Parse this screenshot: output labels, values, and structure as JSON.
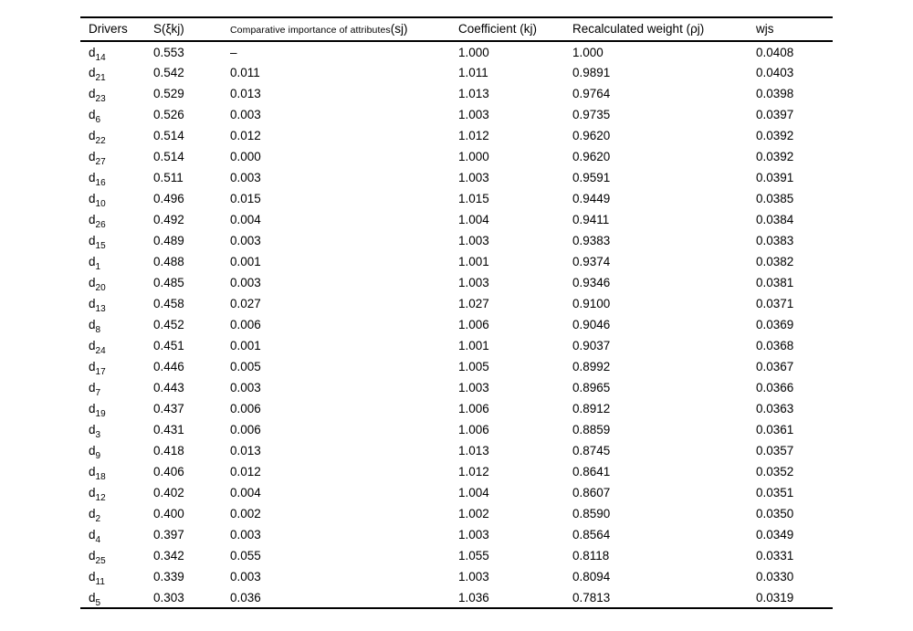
{
  "table": {
    "headers": {
      "drivers": "Drivers",
      "s": "S(ξkj)",
      "comparative_small": "Comparative importance of attributes",
      "comparative_suffix": "(sj)",
      "coefficient": "Coefficient (kj)",
      "recalculated": "Recalculated weight (ρj)",
      "wjs": "wjs"
    },
    "rows": [
      {
        "driver_base": "d",
        "driver_sub": "14",
        "s": "0.553",
        "sj": "–",
        "kj": "1.000",
        "rho": "1.000",
        "wjs": "0.0408"
      },
      {
        "driver_base": "d",
        "driver_sub": "21",
        "s": "0.542",
        "sj": "0.011",
        "kj": "1.011",
        "rho": "0.9891",
        "wjs": "0.0403"
      },
      {
        "driver_base": "d",
        "driver_sub": "23",
        "s": "0.529",
        "sj": "0.013",
        "kj": "1.013",
        "rho": "0.9764",
        "wjs": "0.0398"
      },
      {
        "driver_base": "d",
        "driver_sub": "6",
        "s": "0.526",
        "sj": "0.003",
        "kj": "1.003",
        "rho": "0.9735",
        "wjs": "0.0397"
      },
      {
        "driver_base": "d",
        "driver_sub": "22",
        "s": "0.514",
        "sj": "0.012",
        "kj": "1.012",
        "rho": "0.9620",
        "wjs": "0.0392"
      },
      {
        "driver_base": "d",
        "driver_sub": "27",
        "s": "0.514",
        "sj": "0.000",
        "kj": "1.000",
        "rho": "0.9620",
        "wjs": "0.0392"
      },
      {
        "driver_base": "d",
        "driver_sub": "16",
        "s": "0.511",
        "sj": "0.003",
        "kj": "1.003",
        "rho": "0.9591",
        "wjs": "0.0391"
      },
      {
        "driver_base": "d",
        "driver_sub": "10",
        "s": "0.496",
        "sj": "0.015",
        "kj": "1.015",
        "rho": "0.9449",
        "wjs": "0.0385"
      },
      {
        "driver_base": "d",
        "driver_sub": "26",
        "s": "0.492",
        "sj": "0.004",
        "kj": "1.004",
        "rho": "0.9411",
        "wjs": "0.0384"
      },
      {
        "driver_base": "d",
        "driver_sub": "15",
        "s": "0.489",
        "sj": "0.003",
        "kj": "1.003",
        "rho": "0.9383",
        "wjs": "0.0383"
      },
      {
        "driver_base": "d",
        "driver_sub": "1",
        "s": "0.488",
        "sj": "0.001",
        "kj": "1.001",
        "rho": "0.9374",
        "wjs": "0.0382"
      },
      {
        "driver_base": "d",
        "driver_sub": "20",
        "s": "0.485",
        "sj": "0.003",
        "kj": "1.003",
        "rho": "0.9346",
        "wjs": "0.0381"
      },
      {
        "driver_base": "d",
        "driver_sub": "13",
        "s": "0.458",
        "sj": "0.027",
        "kj": "1.027",
        "rho": "0.9100",
        "wjs": "0.0371"
      },
      {
        "driver_base": "d",
        "driver_sub": "8",
        "s": "0.452",
        "sj": "0.006",
        "kj": "1.006",
        "rho": "0.9046",
        "wjs": "0.0369"
      },
      {
        "driver_base": "d",
        "driver_sub": "24",
        "s": "0.451",
        "sj": "0.001",
        "kj": "1.001",
        "rho": "0.9037",
        "wjs": "0.0368"
      },
      {
        "driver_base": "d",
        "driver_sub": "17",
        "s": "0.446",
        "sj": "0.005",
        "kj": "1.005",
        "rho": "0.8992",
        "wjs": "0.0367"
      },
      {
        "driver_base": "d",
        "driver_sub": "7",
        "s": "0.443",
        "sj": "0.003",
        "kj": "1.003",
        "rho": "0.8965",
        "wjs": "0.0366"
      },
      {
        "driver_base": "d",
        "driver_sub": "19",
        "s": "0.437",
        "sj": "0.006",
        "kj": "1.006",
        "rho": "0.8912",
        "wjs": "0.0363"
      },
      {
        "driver_base": "d",
        "driver_sub": "3",
        "s": "0.431",
        "sj": "0.006",
        "kj": "1.006",
        "rho": "0.8859",
        "wjs": "0.0361"
      },
      {
        "driver_base": "d",
        "driver_sub": "9",
        "s": "0.418",
        "sj": "0.013",
        "kj": "1.013",
        "rho": "0.8745",
        "wjs": "0.0357"
      },
      {
        "driver_base": "d",
        "driver_sub": "18",
        "s": "0.406",
        "sj": "0.012",
        "kj": "1.012",
        "rho": "0.8641",
        "wjs": "0.0352"
      },
      {
        "driver_base": "d",
        "driver_sub": "12",
        "s": "0.402",
        "sj": "0.004",
        "kj": "1.004",
        "rho": "0.8607",
        "wjs": "0.0351"
      },
      {
        "driver_base": "d",
        "driver_sub": "2",
        "s": "0.400",
        "sj": "0.002",
        "kj": "1.002",
        "rho": "0.8590",
        "wjs": "0.0350"
      },
      {
        "driver_base": "d",
        "driver_sub": "4",
        "s": "0.397",
        "sj": "0.003",
        "kj": "1.003",
        "rho": "0.8564",
        "wjs": "0.0349"
      },
      {
        "driver_base": "d",
        "driver_sub": "25",
        "s": "0.342",
        "sj": "0.055",
        "kj": "1.055",
        "rho": "0.8118",
        "wjs": "0.0331"
      },
      {
        "driver_base": "d",
        "driver_sub": "11",
        "s": "0.339",
        "sj": "0.003",
        "kj": "1.003",
        "rho": "0.8094",
        "wjs": "0.0330"
      },
      {
        "driver_base": "d",
        "driver_sub": "5",
        "s": "0.303",
        "sj": "0.036",
        "kj": "1.036",
        "rho": "0.7813",
        "wjs": "0.0319"
      }
    ]
  }
}
